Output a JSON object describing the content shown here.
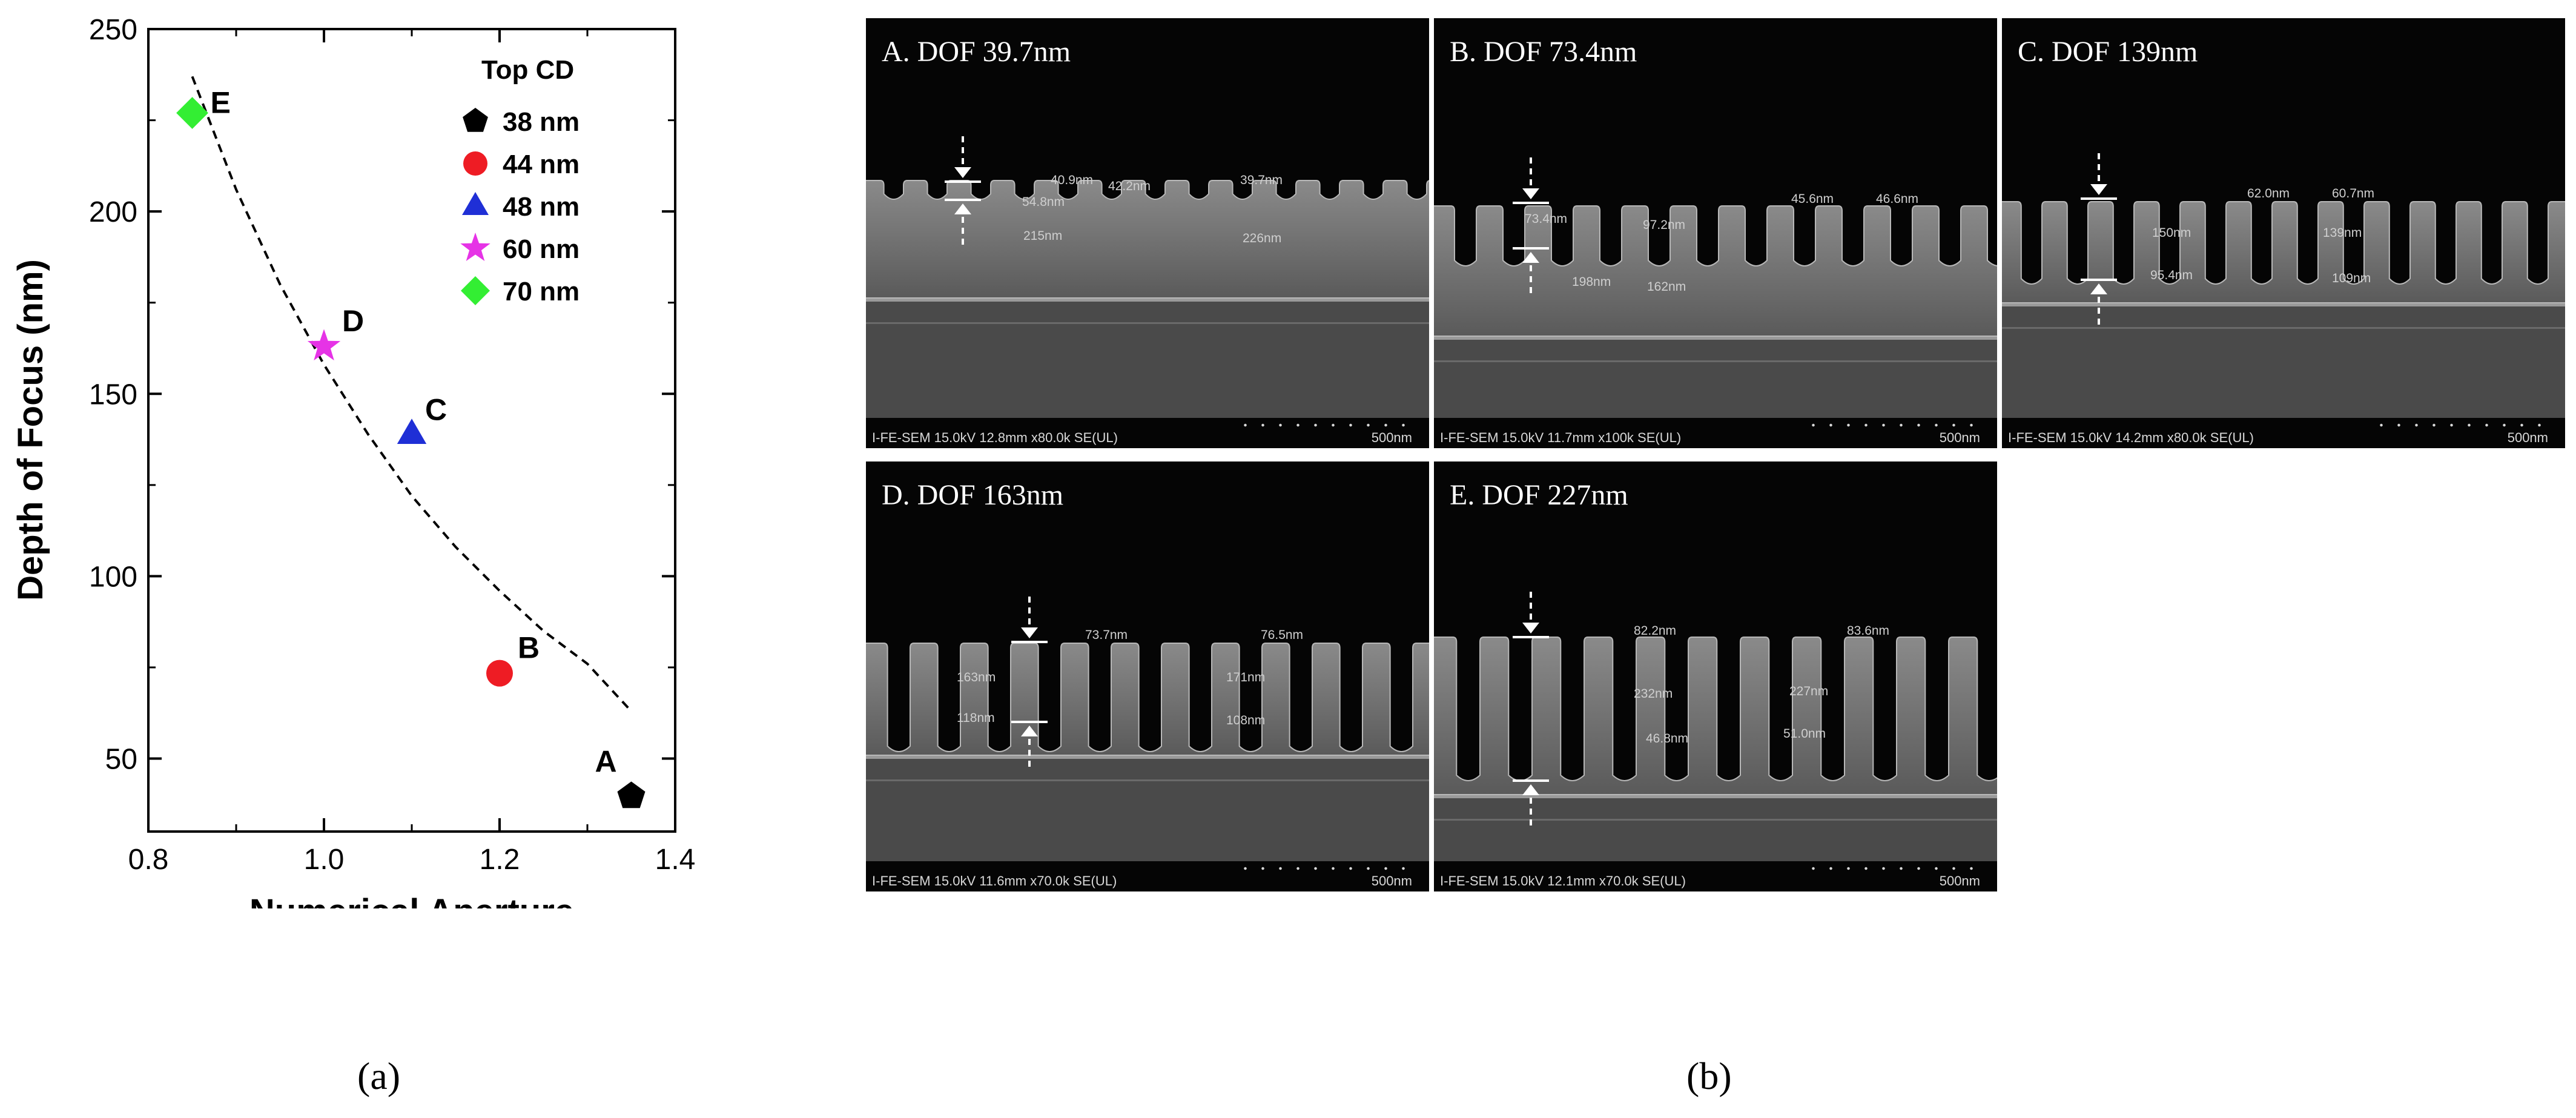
{
  "chart_data": {
    "type": "scatter",
    "xlabel": "Numerical Aperture",
    "ylabel": "Depth of Focus (nm)",
    "xlim": [
      0.8,
      1.4
    ],
    "ylim": [
      30,
      250
    ],
    "xticks": [
      "0.8",
      "1.0",
      "1.2",
      "1.4"
    ],
    "yticks": [
      "50",
      "100",
      "150",
      "200",
      "250"
    ],
    "legend_title": "Top CD",
    "legend_position": "top-right",
    "series": [
      {
        "name": "38 nm",
        "marker": "pentagon",
        "color": "#000000",
        "point_label": "A",
        "x": 1.35,
        "y": 39.7
      },
      {
        "name": "44 nm",
        "marker": "circle",
        "color": "#ee1c24",
        "point_label": "B",
        "x": 1.2,
        "y": 73.4
      },
      {
        "name": "48 nm",
        "marker": "triangle",
        "color": "#1f2fd6",
        "point_label": "C",
        "x": 1.1,
        "y": 139
      },
      {
        "name": "60 nm",
        "marker": "star",
        "color": "#e633e6",
        "point_label": "D",
        "x": 1.0,
        "y": 163
      },
      {
        "name": "70 nm",
        "marker": "diamond",
        "color": "#33ee33",
        "point_label": "E",
        "x": 0.85,
        "y": 227
      }
    ],
    "fit_curve": {
      "style": "dashed",
      "x": [
        0.85,
        0.9,
        0.95,
        1.0,
        1.05,
        1.1,
        1.15,
        1.2,
        1.25,
        1.3,
        1.35
      ],
      "y": [
        237,
        206,
        180,
        158,
        139,
        122,
        108,
        96,
        85,
        76,
        63
      ]
    }
  },
  "subfigure_labels": {
    "a": "(a)",
    "b": "(b)"
  },
  "sem_panels": [
    {
      "title": "A. DOF 39.7nm",
      "footer": "I-FE-SEM 15.0kV 12.8mm x80.0k SE(UL)",
      "scale": "500nm",
      "measurements": [
        "40.9nm",
        "42.2nm",
        "39.7nm",
        "54.8nm",
        "215nm",
        "226nm"
      ]
    },
    {
      "title": "B. DOF 73.4nm",
      "footer": "I-FE-SEM 15.0kV 11.7mm x100k SE(UL)",
      "scale": "500nm",
      "measurements": [
        "45.6nm",
        "46.6nm",
        "73.4nm",
        "97.2nm",
        "198nm",
        "162nm"
      ]
    },
    {
      "title": "C. DOF 139nm",
      "footer": "I-FE-SEM 15.0kV 14.2mm x80.0k SE(UL)",
      "scale": "500nm",
      "measurements": [
        "62.0nm",
        "60.7nm",
        "150nm",
        "139nm",
        "95.4nm",
        "109nm"
      ]
    },
    {
      "title": "D. DOF 163nm",
      "footer": "I-FE-SEM 15.0kV 11.6mm x70.0k SE(UL)",
      "scale": "500nm",
      "measurements": [
        "73.7nm",
        "76.5nm",
        "163nm",
        "171nm",
        "118nm",
        "108nm"
      ]
    },
    {
      "title": "E. DOF 227nm",
      "footer": "I-FE-SEM 15.0kV 12.1mm x70.0k SE(UL)",
      "scale": "500nm",
      "measurements": [
        "82.2nm",
        "83.6nm",
        "232nm",
        "227nm",
        "46.8nm",
        "51.0nm"
      ]
    }
  ]
}
